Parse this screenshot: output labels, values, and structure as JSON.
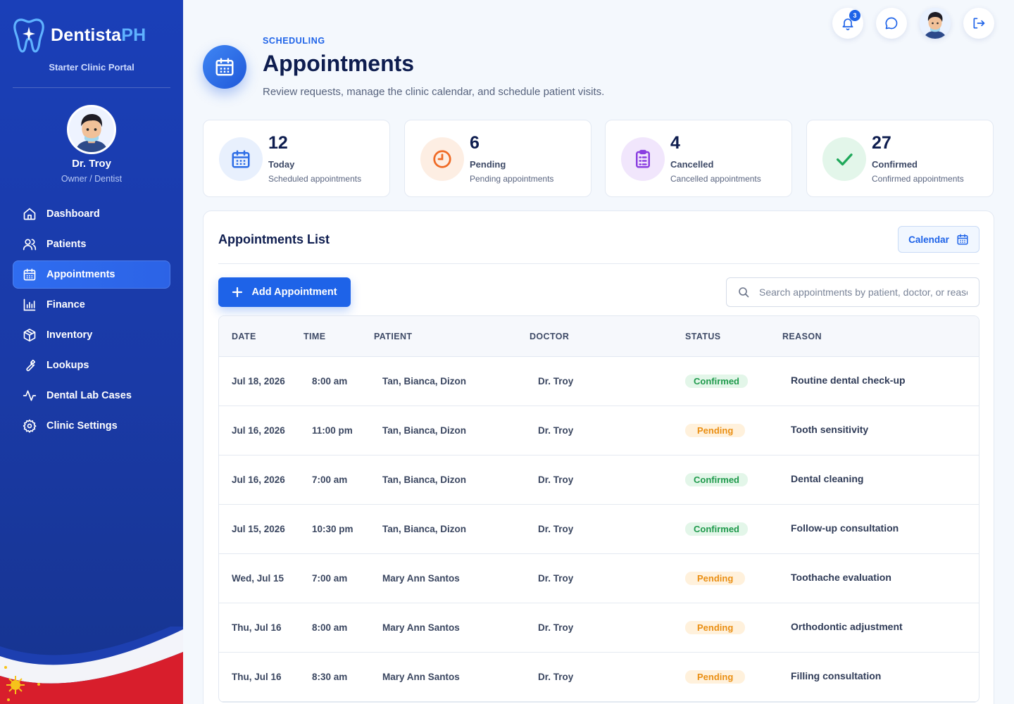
{
  "brand": {
    "name_main": "Dentista",
    "name_accent": "PH",
    "subtitle": "Starter Clinic Portal"
  },
  "user": {
    "name": "Dr. Troy",
    "role": "Owner / Dentist"
  },
  "nav": [
    {
      "label": "Dashboard",
      "icon": "home-icon",
      "active": false
    },
    {
      "label": "Patients",
      "icon": "users-icon",
      "active": false
    },
    {
      "label": "Appointments",
      "icon": "calendar-icon",
      "active": true
    },
    {
      "label": "Finance",
      "icon": "bar-chart-icon",
      "active": false
    },
    {
      "label": "Inventory",
      "icon": "box-icon",
      "active": false
    },
    {
      "label": "Lookups",
      "icon": "wrench-icon",
      "active": false
    },
    {
      "label": "Dental Lab Cases",
      "icon": "activity-icon",
      "active": false
    },
    {
      "label": "Clinic Settings",
      "icon": "gear-icon",
      "active": false
    }
  ],
  "topbar": {
    "notification_count": "3"
  },
  "header": {
    "kicker": "SCHEDULING",
    "title": "Appointments",
    "subtitle": "Review requests, manage the clinic calendar, and schedule patient visits."
  },
  "stats": [
    {
      "value": "12",
      "label": "Today",
      "desc": "Scheduled appointments",
      "icon": "calendar-icon",
      "color": "#2e6ee6"
    },
    {
      "value": "6",
      "label": "Pending",
      "desc": "Pending appointments",
      "icon": "clock-icon",
      "color": "#ef6a25"
    },
    {
      "value": "4",
      "label": "Cancelled",
      "desc": "Cancelled appointments",
      "icon": "clipboard-icon",
      "color": "#8a3fe0"
    },
    {
      "value": "27",
      "label": "Confirmed",
      "desc": "Confirmed appointments",
      "icon": "check-icon",
      "color": "#1fa85a"
    }
  ],
  "list": {
    "title": "Appointments List",
    "calendar_label": "Calendar",
    "add_label": "Add Appointment",
    "search_placeholder": "Search appointments by patient, doctor, or reason",
    "columns": {
      "date": "DATE",
      "time": "TIME",
      "patient": "PATIENT",
      "doctor": "DOCTOR",
      "status": "STATUS",
      "reason": "REASON"
    },
    "rows": [
      {
        "date": "Jul 18, 2026",
        "time": "8:00 am",
        "patient": "Tan, Bianca, Dizon",
        "doctor": "Dr. Troy",
        "status": "Confirmed",
        "reason": "Routine dental check-up"
      },
      {
        "date": "Jul 16, 2026",
        "time": "11:00 pm",
        "patient": "Tan, Bianca, Dizon",
        "doctor": "Dr. Troy",
        "status": "Pending",
        "reason": "Tooth sensitivity"
      },
      {
        "date": "Jul 16, 2026",
        "time": "7:00 am",
        "patient": "Tan, Bianca, Dizon",
        "doctor": "Dr. Troy",
        "status": "Confirmed",
        "reason": "Dental cleaning"
      },
      {
        "date": "Jul 15, 2026",
        "time": "10:30 pm",
        "patient": "Tan, Bianca, Dizon",
        "doctor": "Dr. Troy",
        "status": "Confirmed",
        "reason": "Follow-up consultation"
      },
      {
        "date": "Wed, Jul 15",
        "time": "7:00 am",
        "patient": "Mary Ann Santos",
        "doctor": "Dr. Troy",
        "status": "Pending",
        "reason": "Toothache evaluation"
      },
      {
        "date": "Thu, Jul 16",
        "time": "8:00 am",
        "patient": "Mary Ann Santos",
        "doctor": "Dr. Troy",
        "status": "Pending",
        "reason": "Orthodontic adjustment"
      },
      {
        "date": "Thu, Jul 16",
        "time": "8:30 am",
        "patient": "Mary Ann Santos",
        "doctor": "Dr. Troy",
        "status": "Pending",
        "reason": "Filling consultation"
      }
    ]
  },
  "colors": {
    "primary": "#1e63e8",
    "sidebar": "#1a3fb8",
    "confirmed": "#1f9a4c",
    "pending": "#ea8f13"
  }
}
